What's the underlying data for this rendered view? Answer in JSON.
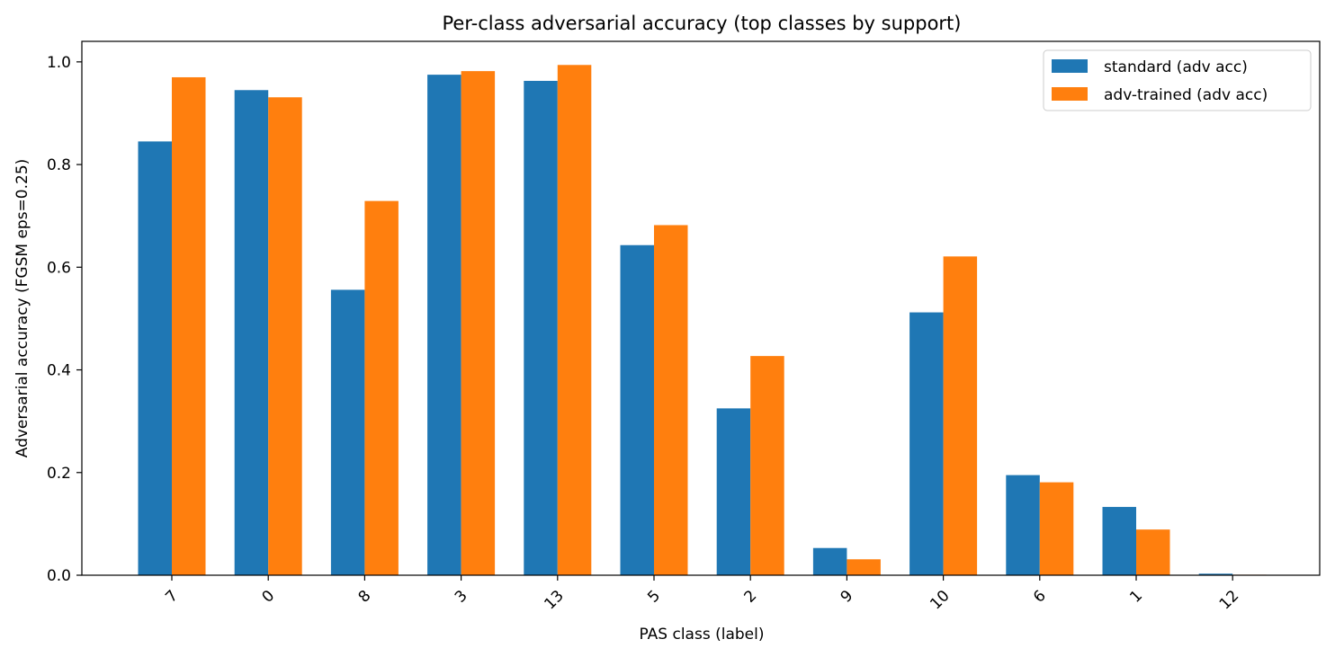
{
  "chart_data": {
    "type": "bar",
    "title": "Per-class adversarial accuracy (top classes by support)",
    "xlabel": "PAS class (label)",
    "ylabel": "Adversarial accuracy (FGSM eps=0.25)",
    "categories": [
      "7",
      "0",
      "8",
      "3",
      "13",
      "5",
      "2",
      "9",
      "10",
      "6",
      "1",
      "12"
    ],
    "ylim": [
      0,
      1.04
    ],
    "yticks": [
      0.0,
      0.2,
      0.4,
      0.6,
      0.8,
      1.0
    ],
    "ytick_labels": [
      "0.0",
      "0.2",
      "0.4",
      "0.6",
      "0.8",
      "1.0"
    ],
    "grid": false,
    "legend_position": "top-right",
    "series": [
      {
        "name": "standard (adv acc)",
        "color": "#1f77b4",
        "values": [
          0.845,
          0.945,
          0.556,
          0.975,
          0.963,
          0.643,
          0.325,
          0.053,
          0.512,
          0.195,
          0.133,
          0.003
        ]
      },
      {
        "name": "adv-trained (adv acc)",
        "color": "#ff7f0e",
        "values": [
          0.97,
          0.931,
          0.729,
          0.982,
          0.994,
          0.682,
          0.427,
          0.031,
          0.621,
          0.181,
          0.089,
          0.001
        ]
      }
    ]
  }
}
